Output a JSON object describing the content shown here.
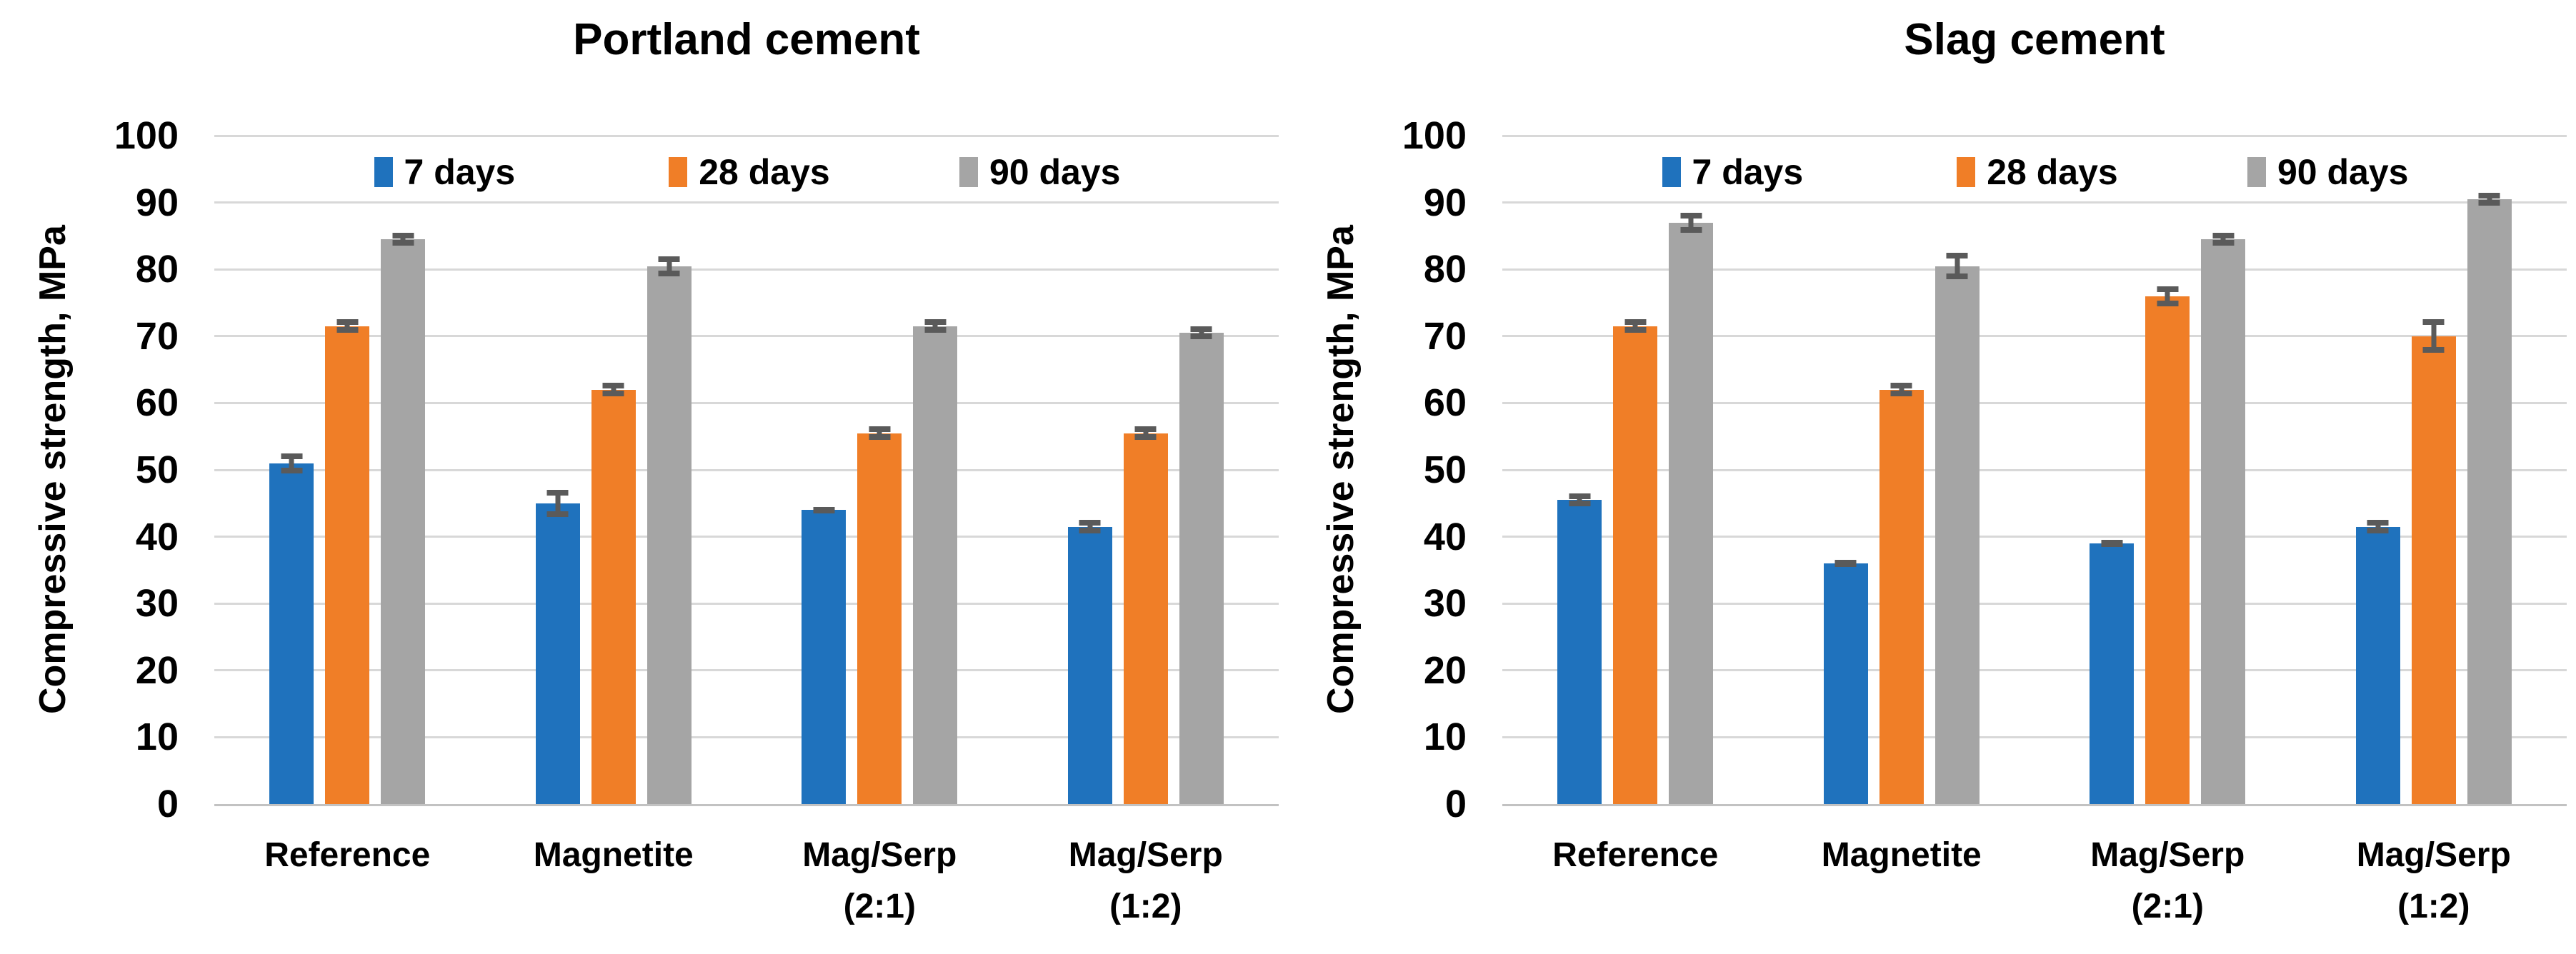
{
  "figure": {
    "background": "#FFFFFF",
    "grid_color": "#D8D8D8",
    "axis_line_color": "#C2C2C2",
    "error_bar_color": "#5A5A5A",
    "text_color": "#000000"
  },
  "chart_data": [
    {
      "type": "bar",
      "title": "Portland cement",
      "ylabel": "Compressive strength, MPa",
      "xlabel": "",
      "ylim": [
        0,
        100
      ],
      "ytick_step": 10,
      "grid": true,
      "legend_position": "top-inside",
      "error_bars": true,
      "categories": [
        [
          "Reference"
        ],
        [
          "Magnetite"
        ],
        [
          "Mag/Serp",
          "(2:1)"
        ],
        [
          "Mag/Serp",
          "(1:2)"
        ]
      ],
      "series": [
        {
          "name": "7 days",
          "color": "#1F72BD",
          "values": [
            51,
            45,
            44,
            41.5
          ],
          "errors": [
            1.5,
            2,
            0.5,
            1
          ]
        },
        {
          "name": "28 days",
          "color": "#F07E27",
          "values": [
            71.5,
            62,
            55.5,
            55.5
          ],
          "errors": [
            1,
            1,
            1,
            1
          ]
        },
        {
          "name": "90 days",
          "color": "#A5A5A5",
          "values": [
            84.5,
            80.5,
            71.5,
            70.5
          ],
          "errors": [
            1,
            1.5,
            1,
            1
          ]
        }
      ]
    },
    {
      "type": "bar",
      "title": "Slag cement",
      "ylabel": "Compressive strength, MPa",
      "xlabel": "",
      "ylim": [
        0,
        100
      ],
      "ytick_step": 10,
      "grid": true,
      "legend_position": "top-inside",
      "error_bars": true,
      "categories": [
        [
          "Reference"
        ],
        [
          "Magnetite"
        ],
        [
          "Mag/Serp",
          "(2:1)"
        ],
        [
          "Mag/Serp",
          "(1:2)"
        ]
      ],
      "series": [
        {
          "name": "7 days",
          "color": "#1F72BD",
          "values": [
            45.5,
            36,
            39,
            41.5
          ],
          "errors": [
            1,
            0.5,
            0.5,
            1
          ]
        },
        {
          "name": "28 days",
          "color": "#F07E27",
          "values": [
            71.5,
            62,
            76,
            70
          ],
          "errors": [
            1,
            1,
            1.5,
            2.5
          ]
        },
        {
          "name": "90 days",
          "color": "#A5A5A5",
          "values": [
            87,
            80.5,
            84.5,
            90.5
          ],
          "errors": [
            1.5,
            2,
            1,
            1
          ]
        }
      ]
    }
  ]
}
